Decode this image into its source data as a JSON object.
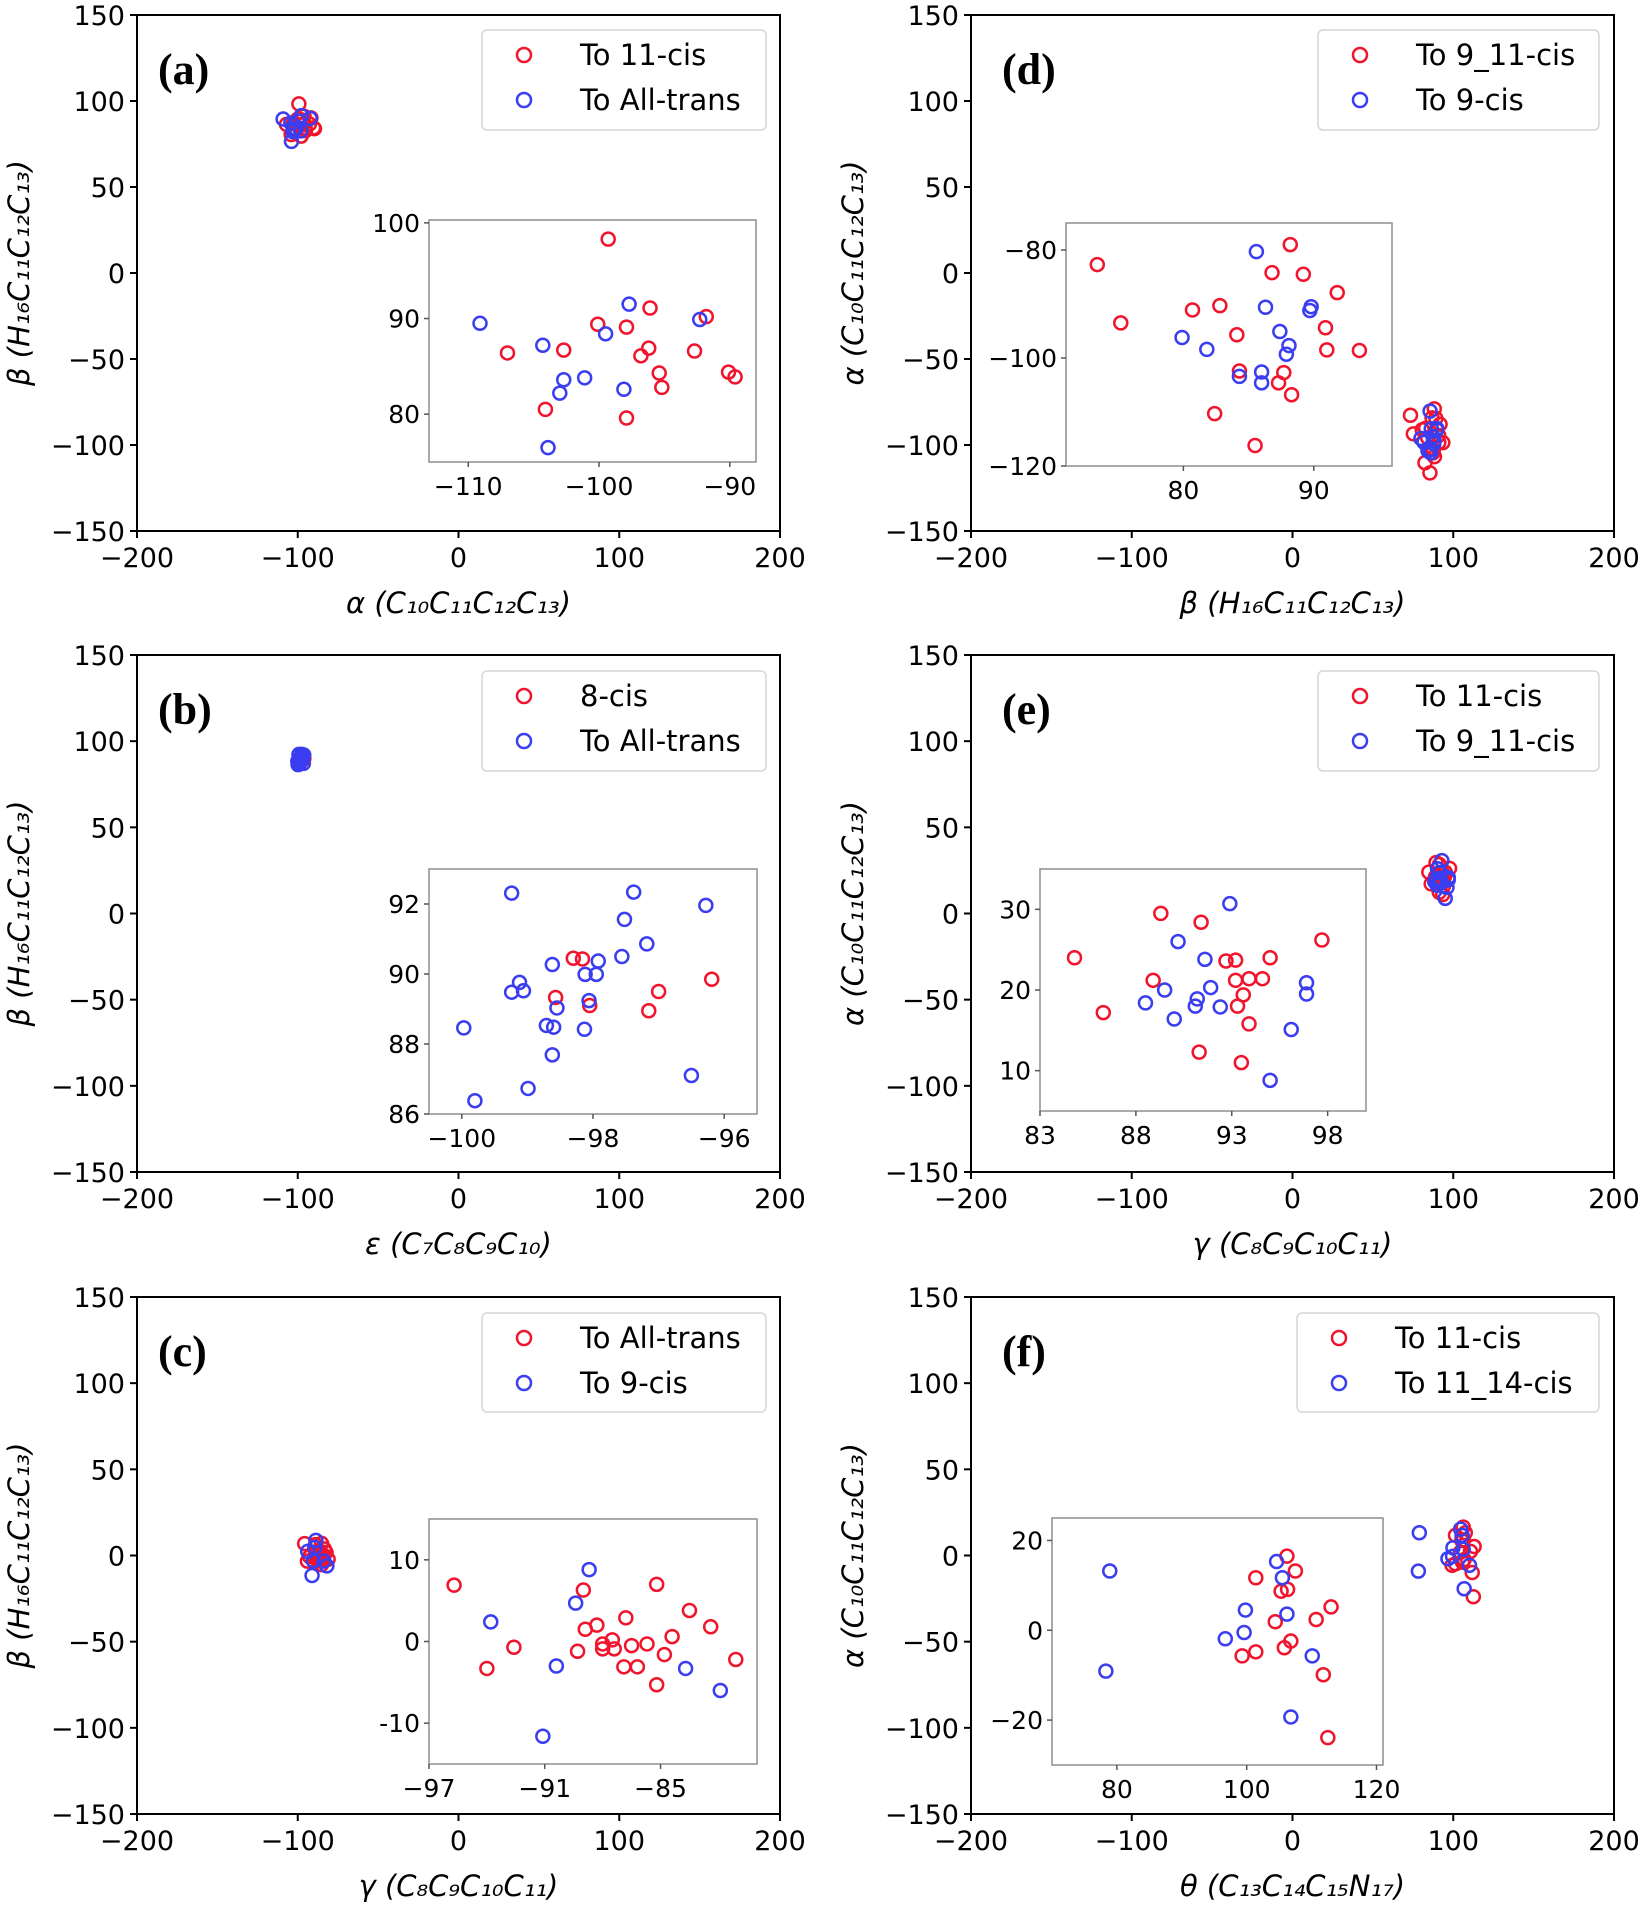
{
  "colors": {
    "red": "#f0152d",
    "blue": "#3a3df0",
    "inset_frame": "#8a8f94",
    "legend_frame": "#d6d6d6"
  },
  "chart_data": [
    {
      "panel": "(a)",
      "type": "scatter",
      "xlabel": "α (C₁₀C₁₁C₁₂C₁₃)",
      "ylabel": "β (H₁₆C₁₁C₁₂C₁₃)",
      "xlim": [
        -200,
        200
      ],
      "ylim": [
        -150,
        150
      ],
      "xticks": [
        "−200",
        "−100",
        "0",
        "100",
        "200"
      ],
      "xtick_values": [
        -200,
        -100,
        0,
        100,
        200
      ],
      "yticks": [
        "−150",
        "−100",
        "−50",
        "0",
        "50",
        "100",
        "150"
      ],
      "ytick_values": [
        -150,
        -100,
        -50,
        0,
        50,
        100,
        150
      ],
      "legend_position": "top-right",
      "series": [
        {
          "name": "To 11-cis",
          "color": "red",
          "x": [
            -99.3,
            -100.1,
            -97.9,
            -96.1,
            -107,
            -102.7,
            -96.2,
            -96.8,
            -92.7,
            -91.8,
            -95.4,
            -95.2,
            -90.1,
            -89.6,
            -104.1,
            -97.9
          ],
          "y": [
            98.3,
            89.4,
            89.1,
            91.1,
            86.4,
            86.7,
            86.9,
            86.1,
            86.6,
            90.2,
            84.3,
            82.8,
            84.4,
            83.9,
            80.5,
            79.6
          ]
        },
        {
          "name": "To All-trans",
          "color": "blue",
          "x": [
            -109.1,
            -104.3,
            -99.5,
            -97.7,
            -92.3,
            -102.7,
            -103,
            -101.1,
            -98.1,
            -103.9
          ],
          "y": [
            89.5,
            87.2,
            88.4,
            91.5,
            89.9,
            83.6,
            82.2,
            83.8,
            82.6,
            76.5
          ]
        }
      ],
      "inset": {
        "xlim": [
          -113,
          -88
        ],
        "ylim": [
          75,
          100.3
        ],
        "xticks": [
          "−110",
          "−100",
          "−90"
        ],
        "xtick_values": [
          -110,
          -100,
          -90
        ],
        "yticks": [
          "80",
          "90",
          "100"
        ],
        "ytick_values": [
          80,
          90,
          100
        ]
      }
    },
    {
      "panel": "(b)",
      "type": "scatter",
      "xlabel": "ε (C₇C₈C₉C₁₀)",
      "ylabel": "β (H₁₆C₁₁C₁₂C₁₃)",
      "xlim": [
        -200,
        200
      ],
      "ylim": [
        -150,
        150
      ],
      "xticks": [
        "−200",
        "−100",
        "0",
        "100",
        "200"
      ],
      "xtick_values": [
        -200,
        -100,
        0,
        100,
        200
      ],
      "yticks": [
        "−150",
        "−100",
        "−50",
        "0",
        "50",
        "100",
        "150"
      ],
      "ytick_values": [
        -150,
        -100,
        -50,
        0,
        50,
        100,
        150
      ],
      "legend_position": "top-right",
      "series": [
        {
          "name": "8-cis",
          "color": "red",
          "x": [
            -98.3,
            -98.16,
            -98.57,
            -98.05,
            -97.0,
            -97.15,
            -96.19
          ],
          "y": [
            90.45,
            90.43,
            89.33,
            89.1,
            89.5,
            88.95,
            89.85
          ]
        },
        {
          "name": "To All-trans",
          "color": "blue",
          "x": [
            -99.24,
            -97.38,
            -96.28,
            -97.52,
            -97.18,
            -97.56,
            -98.62,
            -97.92,
            -98.12,
            -97.95,
            -99.12,
            -99.24,
            -99.06,
            -98.55,
            -98.06,
            -99.97,
            -98.71,
            -98.6,
            -98.13,
            -98.62,
            -98.99,
            -99.8,
            -96.5
          ],
          "y": [
            92.31,
            92.34,
            91.96,
            91.56,
            90.86,
            90.5,
            90.27,
            90.37,
            89.99,
            89.99,
            89.76,
            89.48,
            89.52,
            89.03,
            89.24,
            88.46,
            88.53,
            88.48,
            88.42,
            87.69,
            86.73,
            86.38,
            87.1
          ]
        }
      ],
      "inset": {
        "xlim": [
          -100.5,
          -95.5
        ],
        "ylim": [
          86,
          93
        ],
        "xticks": [
          "−100",
          "−98",
          "−96"
        ],
        "xtick_values": [
          -100,
          -98,
          -96
        ],
        "yticks": [
          "86",
          "88",
          "90",
          "92"
        ],
        "ytick_values": [
          86,
          88,
          90,
          92
        ]
      }
    },
    {
      "panel": "(c)",
      "type": "scatter",
      "xlabel": "γ (C₈C₉C₁₀C₁₁)",
      "ylabel": "β (H₁₆C₁₁C₁₂C₁₃)",
      "xlim": [
        -200,
        200
      ],
      "ylim": [
        -150,
        150
      ],
      "xticks": [
        "−200",
        "−100",
        "0",
        "100",
        "200"
      ],
      "xtick_values": [
        -200,
        -100,
        0,
        100,
        200
      ],
      "yticks": [
        "−150",
        "−100",
        "−50",
        "0",
        "50",
        "100",
        "150"
      ],
      "ytick_values": [
        -150,
        -100,
        -50,
        0,
        50,
        100,
        150
      ],
      "legend_position": "top-right",
      "series": [
        {
          "name": "To All-trans",
          "color": "red",
          "x": [
            -95.7,
            -94.0,
            -92.6,
            -89.0,
            -88.9,
            -88.3,
            -89.3,
            -88.0,
            -88.0,
            -87.5,
            -87.4,
            -86.8,
            -86.5,
            -85.7,
            -86.9,
            -86.2,
            -85.2,
            -85.2,
            -84.8,
            -84.4,
            -83.5,
            -82.4,
            -81.1
          ],
          "y": [
            6.9,
            -3.3,
            -0.7,
            6.3,
            1.5,
            2.0,
            -1.2,
            -0.3,
            -0.9,
            0.2,
            -0.9,
            2.9,
            -0.5,
            -0.3,
            -3.1,
            -3.1,
            7.0,
            -5.3,
            -1.6,
            0.6,
            3.8,
            1.8,
            -2.2
          ]
        },
        {
          "name": "To 9-cis",
          "color": "blue",
          "x": [
            -88.7,
            -89.4,
            -93.8,
            -90.4,
            -91.1,
            -83.7,
            -81.9
          ],
          "y": [
            8.8,
            4.7,
            2.4,
            -3.0,
            -11.6,
            -3.3,
            -6.0
          ]
        }
      ],
      "inset": {
        "xlim": [
          -97,
          -80
        ],
        "ylim": [
          -15,
          15
        ],
        "xticks": [
          "−97",
          "−91",
          "−85"
        ],
        "xtick_values": [
          -97,
          -91,
          -85
        ],
        "yticks": [
          "-10",
          "0",
          "10"
        ],
        "ytick_values": [
          -10,
          0,
          10
        ]
      }
    },
    {
      "panel": "(d)",
      "type": "scatter",
      "xlabel": "β (H₁₆C₁₁C₁₂C₁₃)",
      "ylabel": "α (C₁₀C₁₁C₁₂C₁₃)",
      "xlim": [
        -200,
        200
      ],
      "ylim": [
        -150,
        150
      ],
      "xticks": [
        "−200",
        "−100",
        "0",
        "100",
        "200"
      ],
      "xtick_values": [
        -200,
        -100,
        0,
        100,
        200
      ],
      "yticks": [
        "−150",
        "−100",
        "−50",
        "0",
        "50",
        "100",
        "150"
      ],
      "ytick_values": [
        -150,
        -100,
        -50,
        0,
        50,
        100,
        150
      ],
      "legend_position": "top-right",
      "series": [
        {
          "name": "To 9_11-cis",
          "color": "red",
          "x": [
            73.4,
            75.2,
            80.7,
            82.8,
            84.1,
            88.2,
            86.8,
            89.2,
            91.8,
            90.9,
            91.0,
            93.5,
            84.3,
            87.7,
            87.3,
            88.3,
            82.4,
            85.5
          ],
          "y": [
            -82.7,
            -93.5,
            -91.1,
            -90.3,
            -95.7,
            -79.0,
            -84.2,
            -84.5,
            -87.9,
            -94.4,
            -98.5,
            -98.6,
            -102.4,
            -102.7,
            -104.6,
            -106.8,
            -110.3,
            -116.2
          ]
        },
        {
          "name": "To 9-cis",
          "color": "blue",
          "x": [
            85.6,
            86.3,
            89.8,
            89.7,
            87.4,
            79.9,
            81.8,
            88.1,
            87.9,
            86.0,
            86.0,
            84.3
          ],
          "y": [
            -80.3,
            -90.6,
            -90.5,
            -91.2,
            -95.1,
            -96.2,
            -98.4,
            -97.7,
            -99.3,
            -102.6,
            -104.6,
            -103.4
          ]
        }
      ],
      "inset": {
        "xlim": [
          71,
          96
        ],
        "ylim": [
          -120,
          -75
        ],
        "xticks": [
          "80",
          "90"
        ],
        "xtick_values": [
          80,
          90
        ],
        "yticks": [
          "−120",
          "−100",
          "−80"
        ],
        "ytick_values": [
          -120,
          -100,
          -80
        ]
      }
    },
    {
      "panel": "(e)",
      "type": "scatter",
      "xlabel": "γ (C₈C₉C₁₀C₁₁)",
      "ylabel": "α (C₁₀C₁₁C₁₂C₁₃)",
      "xlim": [
        -200,
        200
      ],
      "ylim": [
        -150,
        150
      ],
      "xticks": [
        "−200",
        "−100",
        "0",
        "100",
        "200"
      ],
      "xtick_values": [
        -200,
        -100,
        0,
        100,
        200
      ],
      "yticks": [
        "−150",
        "−100",
        "−50",
        "0",
        "50",
        "100",
        "150"
      ],
      "ytick_values": [
        -150,
        -100,
        -50,
        0,
        50,
        100,
        150
      ],
      "legend_position": "top-right",
      "series": [
        {
          "name": "To 11-cis",
          "color": "red",
          "x": [
            84.8,
            89.3,
            91.4,
            86.3,
            88.9,
            92.7,
            93.2,
            95.0,
            97.7,
            93.2,
            93.9,
            94.6,
            93.6,
            93.3,
            93.9,
            91.3,
            93.5
          ],
          "y": [
            24.0,
            29.5,
            28.4,
            17.2,
            21.2,
            23.6,
            23.7,
            24.0,
            26.2,
            21.2,
            21.4,
            21.4,
            19.4,
            18.0,
            15.8,
            12.3,
            11.0
          ]
        },
        {
          "name": "To 9_11-cis",
          "color": "blue",
          "x": [
            92.9,
            90.2,
            91.6,
            89.5,
            88.5,
            90.0,
            91.2,
            91.1,
            91.9,
            92.4,
            96.1,
            96.9,
            96.9,
            95.0
          ],
          "y": [
            30.7,
            26.0,
            23.8,
            20.0,
            18.4,
            16.4,
            18.9,
            18.0,
            20.3,
            17.9,
            15.1,
            20.9,
            19.5,
            8.8
          ]
        }
      ],
      "inset": {
        "xlim": [
          83,
          100
        ],
        "ylim": [
          5,
          35
        ],
        "xticks": [
          "83",
          "88",
          "93",
          "98"
        ],
        "xtick_values": [
          83,
          88,
          93,
          98
        ],
        "yticks": [
          "10",
          "20",
          "30"
        ],
        "ytick_values": [
          10,
          20,
          30
        ]
      }
    },
    {
      "panel": "(f)",
      "type": "scatter",
      "xlabel": "θ (C₁₃C₁₄C₁₅N₁₇)",
      "ylabel": "α (C₁₀C₁₁C₁₂C₁₃)",
      "xlim": [
        -200,
        200
      ],
      "ylim": [
        -150,
        150
      ],
      "xticks": [
        "−200",
        "−100",
        "0",
        "100",
        "200"
      ],
      "xtick_values": [
        -200,
        -100,
        0,
        100,
        200
      ],
      "yticks": [
        "−150",
        "−100",
        "−50",
        "0",
        "50",
        "100",
        "150"
      ],
      "ytick_values": [
        -150,
        -100,
        -50,
        0,
        50,
        100,
        150
      ],
      "legend_position": "top-right",
      "series": [
        {
          "name": "To 11-cis",
          "color": "red",
          "x": [
            106.2,
            107.5,
            101.4,
            105.3,
            106.3,
            113.0,
            110.7,
            104.4,
            106.8,
            105.8,
            99.3,
            101.4,
            111.8,
            112.5
          ],
          "y": [
            16.5,
            13.2,
            11.7,
            8.7,
            9.1,
            5.2,
            2.4,
            1.9,
            -2.4,
            -3.9,
            -5.7,
            -4.8,
            -9.9,
            -23.9
          ]
        },
        {
          "name": "To 11_14-cis",
          "color": "blue",
          "x": [
            104.6,
            105.5,
            78.9,
            99.8,
            106.2,
            99.6,
            96.7,
            110.1,
            78.3,
            106.8
          ],
          "y": [
            15.3,
            11.7,
            13.2,
            4.5,
            3.6,
            -0.5,
            -1.9,
            -5.7,
            -9.1,
            -19.3
          ]
        }
      ],
      "inset": {
        "xlim": [
          70,
          121
        ],
        "ylim": [
          -30,
          25
        ],
        "xticks": [
          "80",
          "100",
          "120"
        ],
        "xtick_values": [
          80,
          100,
          120
        ],
        "yticks": [
          "−20",
          "0",
          "20"
        ],
        "ytick_values": [
          -20,
          0,
          20
        ]
      }
    }
  ]
}
